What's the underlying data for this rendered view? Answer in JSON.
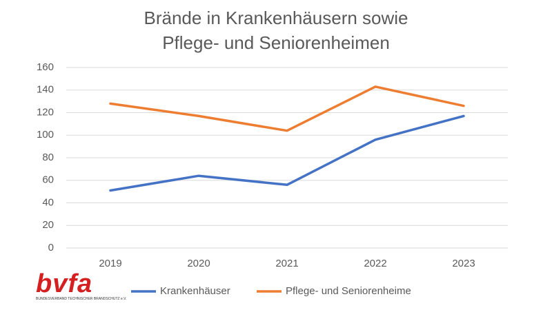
{
  "chart_data": {
    "type": "line",
    "title": "Brände in Krankenhäusern sowie Pflege- und Seniorenheimen",
    "categories": [
      "2019",
      "2020",
      "2021",
      "2022",
      "2023"
    ],
    "series": [
      {
        "name": "Krankenhäuser",
        "color": "#4472c4",
        "values": [
          51,
          64,
          56,
          96,
          117
        ]
      },
      {
        "name": "Pflege- und Seniorenheime",
        "color": "#ed7d31",
        "values": [
          128,
          117,
          104,
          143,
          126
        ]
      }
    ],
    "ylim": [
      0,
      160
    ],
    "yticks": [
      0,
      20,
      40,
      60,
      80,
      100,
      120,
      140,
      160
    ],
    "grid": true,
    "legend": "bottom"
  },
  "logo": {
    "text": "bvfa",
    "subtitle": "BUNDESVERBAND TECHNISCHER BRANDSCHUTZ e.V."
  }
}
